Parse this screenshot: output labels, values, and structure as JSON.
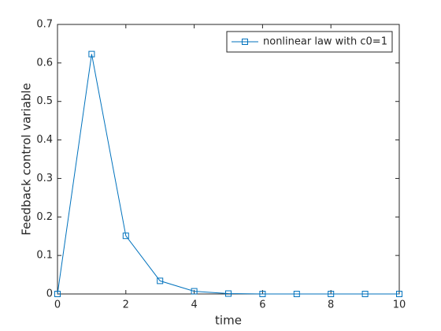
{
  "chart_data": {
    "type": "line",
    "x_label": "time",
    "y_label": "Feedback control variable",
    "x": [
      0,
      1,
      2,
      3,
      4,
      5,
      6,
      7,
      8,
      9,
      10
    ],
    "series": [
      {
        "name": "nonlinear law with c0=1",
        "color": "#0072bd",
        "values": [
          0,
          0.623,
          0.151,
          0.034,
          0.007,
          0.001,
          0,
          0,
          0,
          0,
          0
        ]
      }
    ],
    "xlim": [
      0,
      10
    ],
    "xticks": [
      0,
      2,
      4,
      6,
      8,
      10
    ],
    "ylim": [
      0,
      0.7
    ],
    "yticks": [
      0,
      0.1,
      0.2,
      0.3,
      0.4,
      0.5,
      0.6,
      0.7
    ],
    "marker": "square",
    "legend": "northeast",
    "grid": false
  }
}
